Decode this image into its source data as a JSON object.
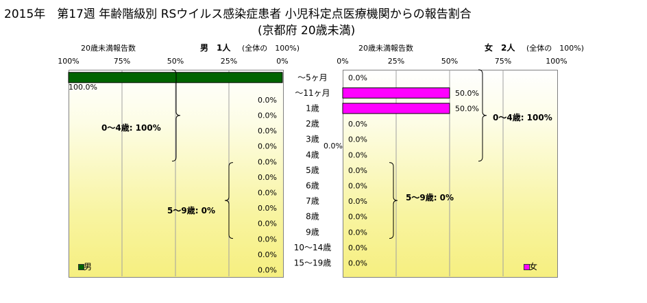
{
  "title_line1": "2015年　第17週 年齢階級別 RSウイルス感染症患者 小児科定点医療機関からの報告割合",
  "title_line2": "(京都府 20歳未満)",
  "chart_data": {
    "type": "bar",
    "categories": [
      "～5ヶ月",
      "～11ヶ月",
      "1歳",
      "2歳",
      "3歳",
      "4歳",
      "5歳",
      "6歳",
      "7歳",
      "8歳",
      "9歳",
      "10～14歳",
      "15～19歳"
    ],
    "male": {
      "header_left": "20歳未満報告数",
      "header_right": "男　1人",
      "header_total": "(全体の　100%)",
      "ticks": [
        "100%",
        "75%",
        "50%",
        "25%",
        "0%"
      ],
      "values": [
        100,
        0,
        0,
        0,
        0,
        0,
        0,
        0,
        0,
        0,
        0,
        0,
        0
      ],
      "value_labels": [
        "100.0%",
        "0.0%",
        "0.0%",
        "0.0%",
        "0.0%",
        "0.0%",
        "0.0%",
        "0.0%",
        "0.0%",
        "0.0%",
        "0.0%",
        "0.0%",
        "0.0%"
      ],
      "color": "#006400",
      "legend": "男",
      "group_0_4": "0～4歳: 100%",
      "group_5_9": "5～9歳: 0%"
    },
    "female": {
      "header_left": "20歳未満報告数",
      "header_right": "女　2人",
      "header_total": "(全体の　100%)",
      "ticks": [
        "0%",
        "25%",
        "50%",
        "75%",
        "100%"
      ],
      "values": [
        0,
        50,
        50,
        0,
        0,
        0,
        0,
        0,
        0,
        0,
        0,
        0,
        0
      ],
      "value_labels": [
        "0.0%",
        "50.0%",
        "50.0%",
        "0.0%",
        "0.0%",
        "0.0%",
        "0.0%",
        "0.0%",
        "0.0%",
        "0.0%",
        "0.0%",
        "0.0%",
        "0.0%"
      ],
      "color": "#ff00ff",
      "legend": "女",
      "group_0_4": "0～4歳: 100%",
      "group_5_9": "5～9歳: 0%"
    },
    "stray_label": "0.0%",
    "xlim": [
      0,
      100
    ]
  }
}
